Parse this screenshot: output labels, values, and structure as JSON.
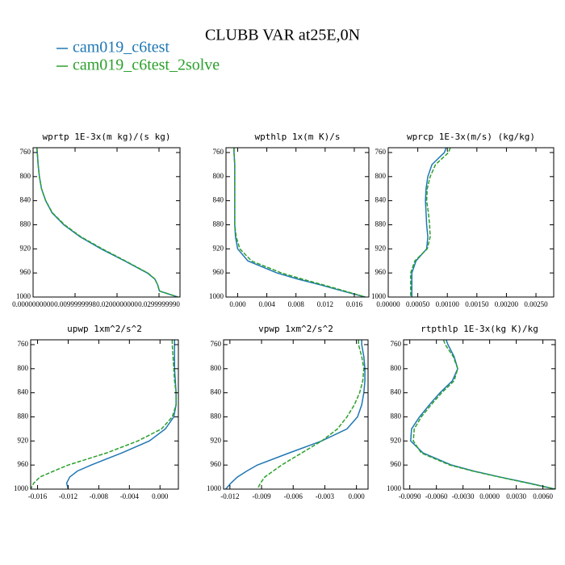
{
  "title": "CLUBB VAR at25E,0N",
  "legend": [
    {
      "name": "cam019_c6test",
      "color": "#1f77b4",
      "style": "solid"
    },
    {
      "name": "cam019_c6test_2solve",
      "color": "#2ca02c",
      "style": "dashed"
    }
  ],
  "chart_data": [
    {
      "type": "line",
      "title": "wprtp  1E-3x(m kg)/(s kg)",
      "y": [
        752,
        760,
        780,
        800,
        820,
        840,
        860,
        880,
        900,
        920,
        940,
        960,
        970,
        980,
        990,
        1000
      ],
      "ylim": [
        752,
        1000
      ],
      "y_inverted": true,
      "yticks": [
        760,
        800,
        840,
        880,
        920,
        960,
        1000
      ],
      "xlim": [
        0,
        0.035
      ],
      "xticks": [
        {
          "value": 0,
          "label": "0.0000000000"
        },
        {
          "value": 0.01,
          "label": "0.0099999998"
        },
        {
          "value": 0.02,
          "label": "0.0200000000"
        },
        {
          "value": 0.03,
          "label": "0.0299999990"
        }
      ],
      "series": [
        {
          "values": [
            0.0009,
            0.001,
            0.0012,
            0.0015,
            0.002,
            0.003,
            0.0045,
            0.0073,
            0.0112,
            0.0162,
            0.0218,
            0.0272,
            0.029,
            0.0297,
            0.0301,
            0.0345
          ]
        },
        {
          "values": [
            0.0009,
            0.001,
            0.0012,
            0.0015,
            0.002,
            0.003,
            0.0046,
            0.0075,
            0.0114,
            0.0165,
            0.022,
            0.0273,
            0.029,
            0.0297,
            0.0301,
            0.0345
          ]
        }
      ]
    },
    {
      "type": "line",
      "title": "wpthlp  1x(m K)/s",
      "y": [
        752,
        760,
        780,
        800,
        820,
        840,
        860,
        880,
        900,
        920,
        940,
        960,
        970,
        980,
        990,
        1000
      ],
      "ylim": [
        752,
        1000
      ],
      "y_inverted": true,
      "yticks": [
        760,
        800,
        840,
        880,
        920,
        960,
        1000
      ],
      "xlim": [
        -0.0016,
        0.018
      ],
      "xticks": [
        {
          "value": 0,
          "label": "0.000"
        },
        0.004,
        0.008,
        0.012,
        0.016
      ],
      "series": [
        {
          "values": [
            -0.0005,
            -0.0005,
            -0.0004,
            -0.0004,
            -0.0004,
            -0.0004,
            -0.0004,
            -0.0004,
            -0.0003,
            0.0,
            0.0014,
            0.0054,
            0.0082,
            0.0114,
            0.0144,
            0.0175
          ]
        },
        {
          "values": [
            -0.0005,
            -0.0005,
            -0.0004,
            -0.0004,
            -0.0004,
            -0.0004,
            -0.0004,
            -0.0004,
            -0.0002,
            0.0003,
            0.0019,
            0.006,
            0.0088,
            0.0118,
            0.0147,
            0.0175
          ]
        }
      ]
    },
    {
      "type": "line",
      "title": "wprcp  1E-3x(m/s) (kg/kg)",
      "y": [
        752,
        760,
        780,
        800,
        820,
        840,
        860,
        880,
        900,
        920,
        940,
        960,
        970,
        980,
        990,
        1000
      ],
      "ylim": [
        752,
        1000
      ],
      "y_inverted": true,
      "yticks": [
        760,
        800,
        840,
        880,
        920,
        960,
        1000
      ],
      "xlim": [
        0,
        0.0028
      ],
      "xticks": [
        {
          "value": 0,
          "label": "0.00000"
        },
        {
          "value": 0.0005,
          "label": "0.00050"
        },
        {
          "value": 0.001,
          "label": "0.00100"
        },
        {
          "value": 0.0015,
          "label": "0.00150"
        },
        {
          "value": 0.002,
          "label": "0.00200"
        },
        {
          "value": 0.0025,
          "label": "0.00250"
        }
      ],
      "series": [
        {
          "values": [
            0.00098,
            0.00095,
            0.00074,
            0.00067,
            0.00064,
            0.00063,
            0.00064,
            0.00065,
            0.00067,
            0.00065,
            0.00047,
            0.0004,
            0.0004,
            0.0004,
            0.0004,
            0.0004
          ]
        },
        {
          "values": [
            0.00105,
            0.00102,
            0.0008,
            0.00071,
            0.00066,
            0.00065,
            0.00068,
            0.0007,
            0.00071,
            0.00066,
            0.00045,
            0.00038,
            0.00038,
            0.00038,
            0.00038,
            0.00038
          ]
        }
      ]
    },
    {
      "type": "line",
      "title": "upwp  1xm^2/s^2",
      "y": [
        752,
        760,
        780,
        800,
        820,
        840,
        860,
        880,
        900,
        920,
        940,
        960,
        970,
        980,
        990,
        1000
      ],
      "ylim": [
        752,
        1000
      ],
      "y_inverted": true,
      "yticks": [
        760,
        800,
        840,
        880,
        920,
        960,
        1000
      ],
      "xlim": [
        -0.0169,
        0.0024
      ],
      "xticks": [
        -0.016,
        -0.012,
        -0.008,
        -0.004,
        {
          "value": 0,
          "label": "0.000"
        }
      ],
      "series": [
        {
          "values": [
            0.0019,
            0.0019,
            0.0019,
            0.0019,
            0.002,
            0.0021,
            0.0021,
            0.0018,
            0.0007,
            -0.0014,
            -0.005,
            -0.009,
            -0.0108,
            -0.0118,
            -0.0122,
            -0.012
          ]
        },
        {
          "values": [
            0.0016,
            0.0016,
            0.0017,
            0.0018,
            0.0019,
            0.0021,
            0.0021,
            0.0016,
            0.0002,
            -0.0029,
            -0.007,
            -0.012,
            -0.0139,
            -0.0157,
            -0.0165,
            -0.0169
          ]
        }
      ]
    },
    {
      "type": "line",
      "title": "vpwp  1xm^2/s^2",
      "y": [
        752,
        760,
        780,
        800,
        820,
        840,
        860,
        880,
        900,
        920,
        940,
        960,
        970,
        980,
        990,
        1000
      ],
      "ylim": [
        752,
        1000
      ],
      "y_inverted": true,
      "yticks": [
        760,
        800,
        840,
        880,
        920,
        960,
        1000
      ],
      "xlim": [
        -0.0126,
        0.0011
      ],
      "xticks": [
        -0.012,
        -0.009,
        -0.006,
        -0.003,
        {
          "value": 0,
          "label": "0.000"
        }
      ],
      "series": [
        {
          "values": [
            0.0005,
            0.0005,
            0.0007,
            0.0008,
            0.0008,
            0.0007,
            0.0005,
            0.0001,
            -0.0009,
            -0.0033,
            -0.0064,
            -0.0094,
            -0.0104,
            -0.0113,
            -0.0119,
            -0.0124
          ]
        },
        {
          "values": [
            0.0002,
            0.0002,
            0.0005,
            0.0007,
            0.0006,
            0.0003,
            -0.0002,
            -0.0009,
            -0.0018,
            -0.0033,
            -0.0052,
            -0.0071,
            -0.0079,
            -0.0087,
            -0.0091,
            -0.0094
          ]
        }
      ]
    },
    {
      "type": "line",
      "title": "rtpthlp  1E-3x(kg K)/kg",
      "y": [
        752,
        760,
        780,
        800,
        820,
        840,
        860,
        880,
        900,
        920,
        940,
        960,
        970,
        980,
        990,
        1000
      ],
      "ylim": [
        752,
        1000
      ],
      "y_inverted": true,
      "yticks": [
        760,
        800,
        840,
        880,
        920,
        960,
        1000
      ],
      "xlim": [
        -0.0097,
        0.0074
      ],
      "xticks": [
        {
          "value": -0.009,
          "label": "-0.0090"
        },
        {
          "value": -0.006,
          "label": "-0.0060"
        },
        {
          "value": -0.003,
          "label": "-0.0030"
        },
        {
          "value": 0,
          "label": "0.0000"
        },
        {
          "value": 0.003,
          "label": "0.0030"
        },
        {
          "value": 0.006,
          "label": "0.0060"
        }
      ],
      "series": [
        {
          "values": [
            -0.0049,
            -0.0047,
            -0.004,
            -0.0036,
            -0.0042,
            -0.0056,
            -0.0068,
            -0.0079,
            -0.0088,
            -0.0089,
            -0.0075,
            -0.0043,
            -0.0018,
            0.0012,
            0.0044,
            0.0074
          ]
        },
        {
          "values": [
            -0.0052,
            -0.005,
            -0.0041,
            -0.0036,
            -0.004,
            -0.0054,
            -0.0066,
            -0.0077,
            -0.0085,
            -0.0086,
            -0.0077,
            -0.0045,
            -0.0019,
            0.0011,
            0.0043,
            0.0074
          ]
        }
      ]
    }
  ]
}
